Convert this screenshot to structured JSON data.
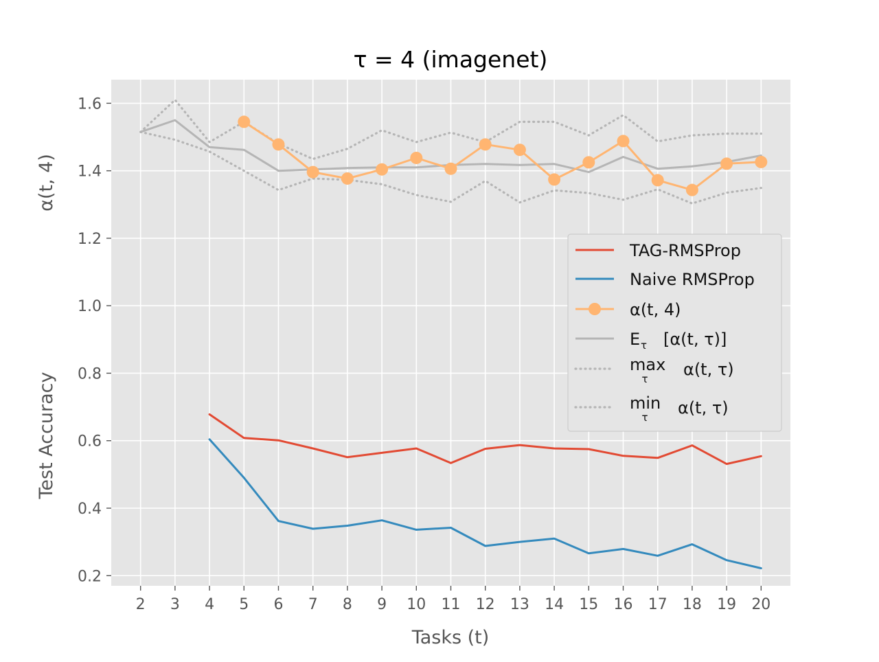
{
  "chart_data": {
    "type": "line",
    "title": "τ = 4 (imagenet)",
    "xlabel": "Tasks (t)",
    "ylabel_left": "α(t, 4)",
    "ylabel_right": "Test Accuracy",
    "ylim": [
      0.17,
      1.67
    ],
    "xlim": [
      1.15,
      20.85
    ],
    "yticks": [
      0.2,
      0.4,
      0.6,
      0.8,
      1.0,
      1.2,
      1.4,
      1.6
    ],
    "ytick_labels": [
      "0.2",
      "0.4",
      "0.6",
      "0.8",
      "1.0",
      "1.2",
      "1.4",
      "1.6"
    ],
    "xticks": [
      2,
      3,
      4,
      5,
      6,
      7,
      8,
      9,
      10,
      11,
      12,
      13,
      14,
      15,
      16,
      17,
      18,
      19,
      20
    ],
    "xtick_labels": [
      "2",
      "3",
      "4",
      "5",
      "6",
      "7",
      "8",
      "9",
      "10",
      "11",
      "12",
      "13",
      "14",
      "15",
      "16",
      "17",
      "18",
      "19",
      "20"
    ],
    "grid": true,
    "legend_position": "right",
    "series": [
      {
        "key": "tag",
        "name": "TAG-RMSProp",
        "color": "#e24a33",
        "style": "solid",
        "x": [
          4,
          5,
          6,
          7,
          8,
          9,
          10,
          11,
          12,
          13,
          14,
          15,
          16,
          17,
          18,
          19,
          20
        ],
        "y": [
          0.678,
          0.608,
          0.601,
          0.577,
          0.551,
          0.564,
          0.577,
          0.534,
          0.576,
          0.587,
          0.577,
          0.575,
          0.555,
          0.549,
          0.586,
          0.531,
          0.554
        ]
      },
      {
        "key": "naive",
        "name": "Naive RMSProp",
        "color": "#348abd",
        "style": "solid",
        "x": [
          4,
          5,
          6,
          7,
          8,
          9,
          10,
          11,
          12,
          13,
          14,
          15,
          16,
          17,
          18,
          19,
          20
        ],
        "y": [
          0.604,
          0.49,
          0.362,
          0.339,
          0.348,
          0.364,
          0.336,
          0.342,
          0.288,
          0.3,
          0.31,
          0.266,
          0.279,
          0.259,
          0.293,
          0.246,
          0.222
        ]
      },
      {
        "key": "alpha",
        "name": "α(t, 4)",
        "color": "#ffb571",
        "style": "solid-marker",
        "x": [
          5,
          6,
          7,
          8,
          9,
          10,
          11,
          12,
          13,
          14,
          15,
          16,
          17,
          18,
          19,
          20
        ],
        "y": [
          1.545,
          1.478,
          1.396,
          1.377,
          1.404,
          1.438,
          1.406,
          1.478,
          1.462,
          1.374,
          1.425,
          1.488,
          1.372,
          1.343,
          1.421,
          1.426
        ]
      },
      {
        "key": "mean",
        "name": "E",
        "name_sub": "τ",
        "name_rest": "[α(t, τ)]",
        "color": "#b5b5b5",
        "style": "solid",
        "x": [
          2,
          3,
          4,
          5,
          6,
          7,
          8,
          9,
          10,
          11,
          12,
          13,
          14,
          15,
          16,
          17,
          18,
          19,
          20
        ],
        "y": [
          1.515,
          1.55,
          1.47,
          1.462,
          1.4,
          1.404,
          1.408,
          1.41,
          1.41,
          1.417,
          1.42,
          1.417,
          1.42,
          1.396,
          1.441,
          1.406,
          1.413,
          1.426,
          1.445
        ]
      },
      {
        "key": "max",
        "name": "max",
        "name_sub": "τ",
        "name_rest": "α(t, τ)",
        "color": "#b5b5b5",
        "style": "dotted",
        "x": [
          2,
          3,
          4,
          5,
          6,
          7,
          8,
          9,
          10,
          11,
          12,
          13,
          14,
          15,
          16,
          17,
          18,
          19,
          20
        ],
        "y": [
          1.515,
          1.61,
          1.485,
          1.545,
          1.48,
          1.435,
          1.465,
          1.52,
          1.485,
          1.513,
          1.485,
          1.545,
          1.545,
          1.505,
          1.565,
          1.487,
          1.505,
          1.51,
          1.51
        ]
      },
      {
        "key": "min",
        "name": "min",
        "name_sub": "τ",
        "name_rest": "α(t, τ)",
        "color": "#b5b5b5",
        "style": "dotted",
        "x": [
          2,
          3,
          4,
          5,
          6,
          7,
          8,
          9,
          10,
          11,
          12,
          13,
          14,
          15,
          16,
          17,
          18,
          19,
          20
        ],
        "y": [
          1.515,
          1.492,
          1.457,
          1.4,
          1.343,
          1.377,
          1.373,
          1.36,
          1.328,
          1.308,
          1.37,
          1.306,
          1.342,
          1.334,
          1.314,
          1.345,
          1.303,
          1.335,
          1.349
        ]
      }
    ]
  }
}
